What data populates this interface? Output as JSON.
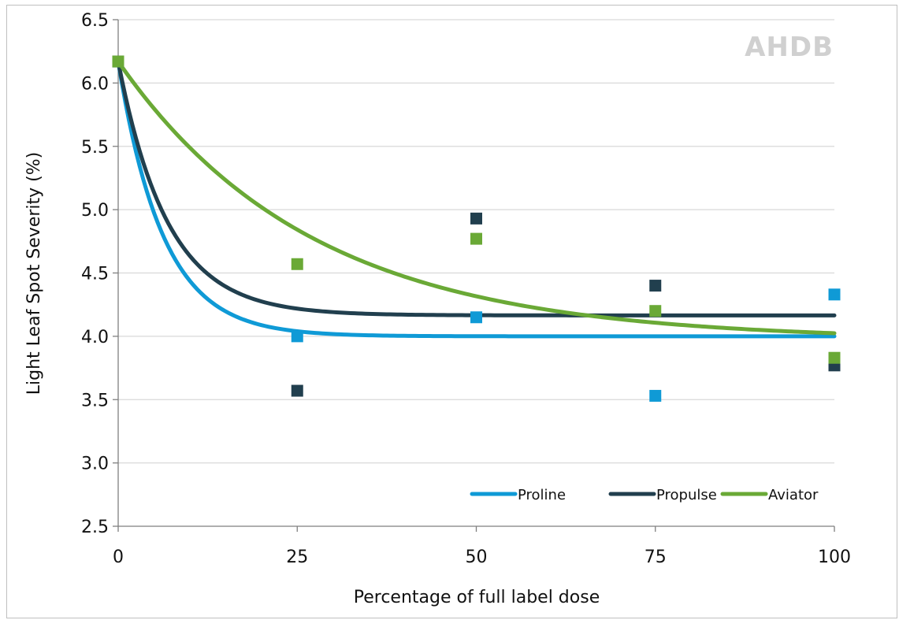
{
  "logo": {
    "text": "AHDB"
  },
  "chart_data": {
    "type": "scatter",
    "title": "",
    "xlabel": "Percentage of full label dose",
    "ylabel": "Light Leaf Spot Severity (%)",
    "xlim": [
      0,
      100
    ],
    "ylim": [
      2.5,
      6.5
    ],
    "x_ticks": [
      "0",
      "25",
      "50",
      "75",
      "100"
    ],
    "y_ticks": [
      "2.5",
      "3.0",
      "3.5",
      "4.0",
      "4.5",
      "5.0",
      "5.5",
      "6.0",
      "6.5"
    ],
    "grid": "horizontal",
    "legend_position": "bottom-right",
    "series": [
      {
        "name": "Proline",
        "color": "#0f9ad6",
        "points": [
          [
            0,
            6.17
          ],
          [
            25,
            4.0
          ],
          [
            50,
            4.15
          ],
          [
            75,
            3.53
          ],
          [
            100,
            4.33
          ]
        ],
        "curve": {
          "asymptote": 4.0,
          "start": 6.17,
          "rate": 0.16
        }
      },
      {
        "name": "Propulse",
        "color": "#213f4e",
        "points": [
          [
            0,
            6.17
          ],
          [
            25,
            3.57
          ],
          [
            50,
            4.93
          ],
          [
            75,
            4.4
          ],
          [
            100,
            3.77
          ]
        ],
        "curve": {
          "asymptote": 4.165,
          "start": 6.17,
          "rate": 0.145
        }
      },
      {
        "name": "Aviator",
        "color": "#6aa936",
        "points": [
          [
            0,
            6.17
          ],
          [
            25,
            4.57
          ],
          [
            50,
            4.77
          ],
          [
            75,
            4.2
          ],
          [
            100,
            3.83
          ]
        ],
        "curve": {
          "asymptote": 3.97,
          "start": 6.17,
          "rate": 0.037
        }
      }
    ]
  }
}
